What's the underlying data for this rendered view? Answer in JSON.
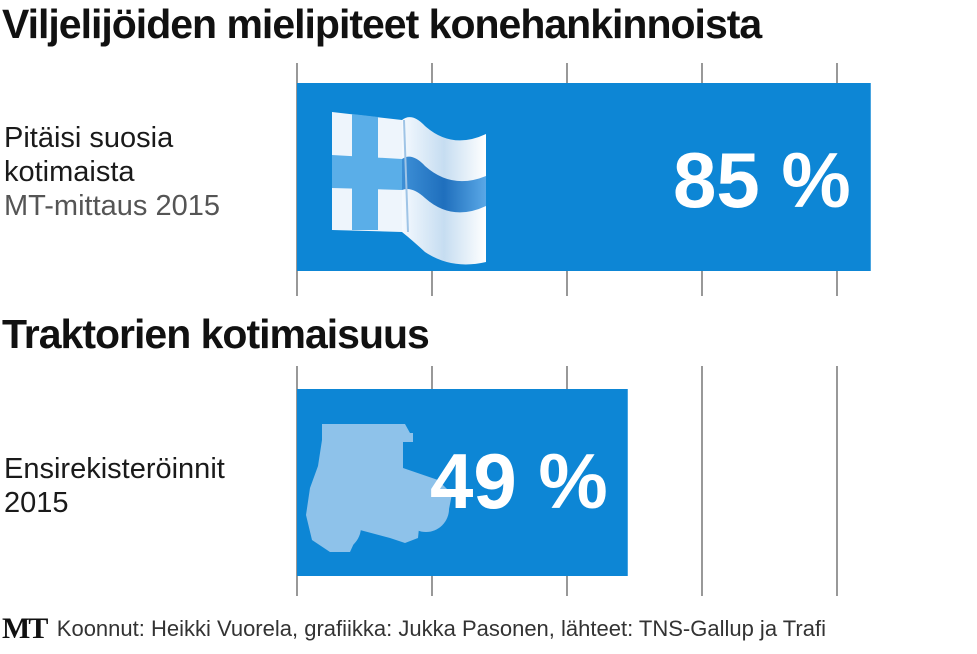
{
  "chart_data": [
    {
      "type": "bar",
      "title": "Viljelijöiden mielipiteet konehankinnoista",
      "categories": [
        "Pitäisi suosia kotimaista"
      ],
      "category_lines": [
        "Pitäisi suosia",
        "kotimaista"
      ],
      "sublabel": "MT-mittaus 2015",
      "values": [
        85
      ],
      "value_labels": [
        "85 %"
      ],
      "unit": "%",
      "xlim": [
        0,
        100
      ],
      "grid": true,
      "icon": "finnish-flag-icon",
      "bar_color": "#0d86d5"
    },
    {
      "type": "bar",
      "title": "Traktorien kotimaisuus",
      "categories": [
        "Ensirekisteröinnit 2015"
      ],
      "category_lines": [
        "Ensirekisteröinnit",
        "2015"
      ],
      "values": [
        49
      ],
      "value_labels": [
        "49 %"
      ],
      "unit": "%",
      "xlim": [
        0,
        100
      ],
      "grid": true,
      "icon": "tractor-icon",
      "bar_color": "#0d86d5"
    }
  ],
  "footer": {
    "logo": "MT",
    "credits": "Koonnut: Heikki Vuorela, grafiikka: Jukka Pasonen, lähteet: TNS-Gallup ja Trafi"
  }
}
